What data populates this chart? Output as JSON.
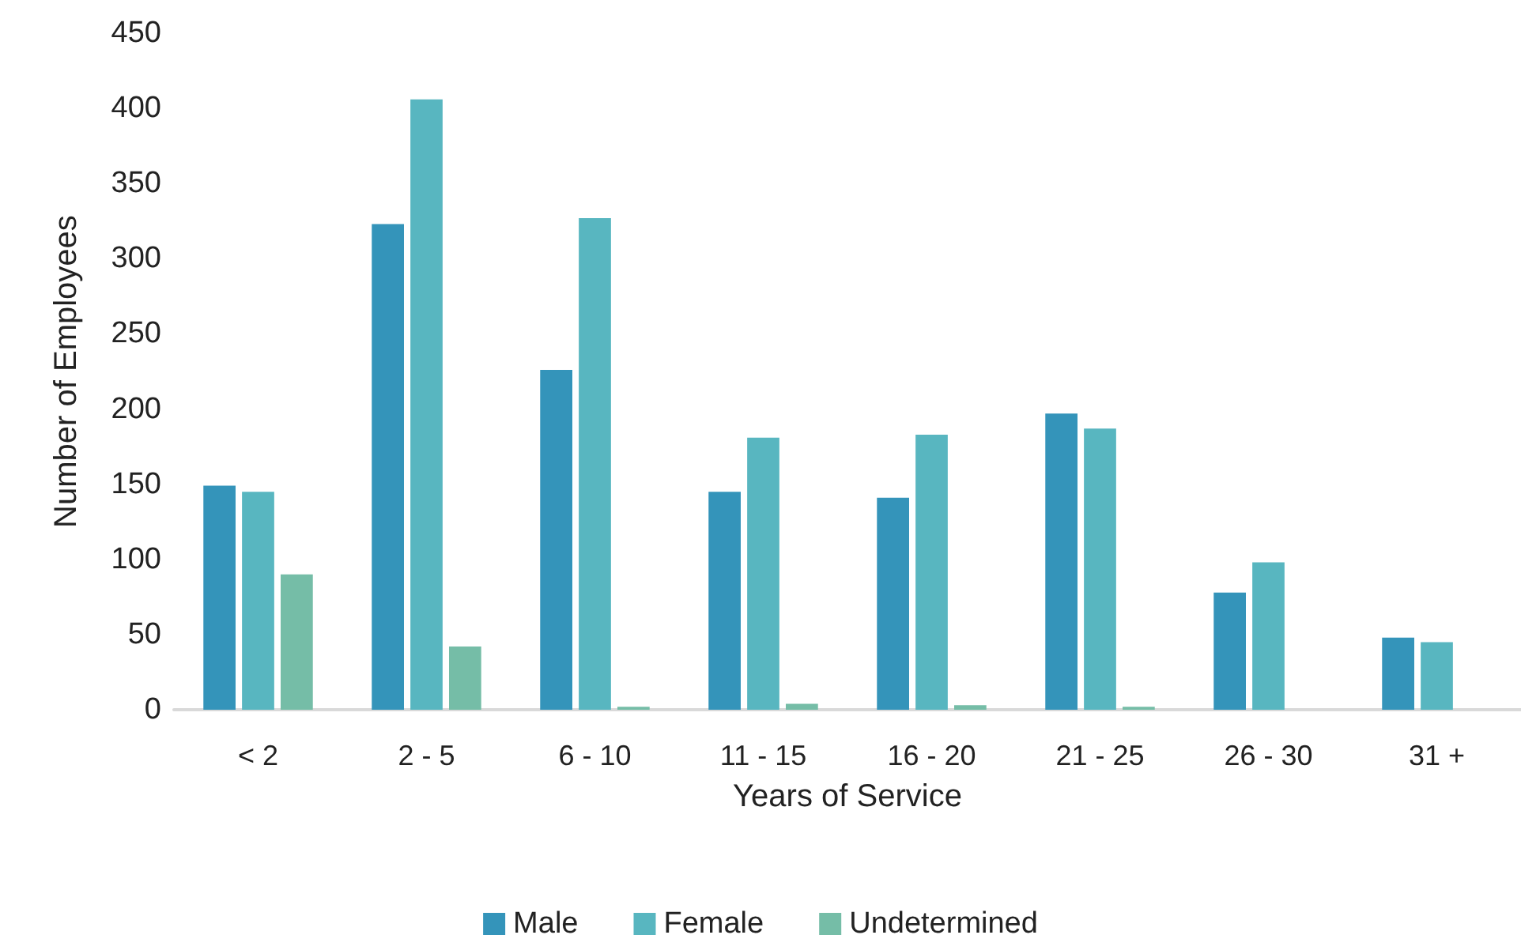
{
  "chart_data": {
    "type": "bar",
    "xlabel": "Years of Service",
    "ylabel": "Number of Employees",
    "categories": [
      "< 2",
      "2 - 5",
      "6 - 10",
      "11 - 15",
      "16 - 20",
      "21 - 25",
      "26 - 30",
      "31 +"
    ],
    "series": [
      {
        "name": "Male",
        "color": "#3494ba",
        "values": [
          149,
          323,
          226,
          145,
          141,
          197,
          78,
          48
        ]
      },
      {
        "name": "Female",
        "color": "#58b6c0",
        "values": [
          145,
          406,
          327,
          181,
          183,
          187,
          98,
          45
        ]
      },
      {
        "name": "Undetermined",
        "color": "#75bda7",
        "values": [
          90,
          42,
          2,
          4,
          3,
          2,
          null,
          null
        ]
      }
    ],
    "ylim": [
      0,
      450
    ],
    "yticks": [
      0,
      50,
      100,
      150,
      200,
      250,
      300,
      350,
      400,
      450
    ],
    "grid": false,
    "legend": "bottom"
  }
}
